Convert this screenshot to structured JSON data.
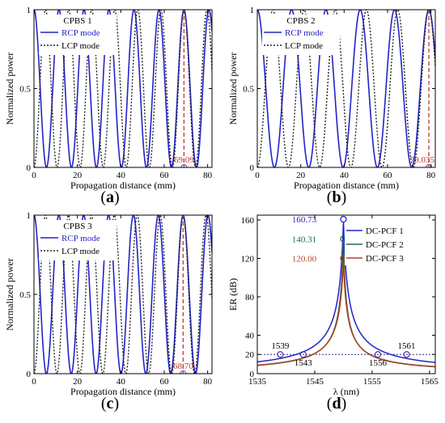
{
  "chart_data": [
    {
      "type": "line",
      "panel_label": "(a)",
      "inset_title": "CPBS 1",
      "xlabel": "Propagation distance (mm)",
      "ylabel": "Normalized power",
      "xlim": [
        0,
        82
      ],
      "ylim": [
        0,
        1
      ],
      "xticks": [
        0,
        20,
        40,
        60,
        80
      ],
      "yticks": [
        0,
        0.5,
        1
      ],
      "xtick_labels": [
        "0",
        "20",
        "40",
        "60",
        "80"
      ],
      "ytick_labels": [
        "0",
        "0.5",
        "1"
      ],
      "legend_placement": "top-left",
      "series": [
        {
          "name": "RCP mode",
          "style": "solid",
          "color": "#2323c8",
          "start": "max",
          "crossings": 12,
          "length": 69.09
        },
        {
          "name": "LCP mode",
          "style": "dotted",
          "color": "#222222",
          "start": "min",
          "crossings": 13,
          "length": 69.09
        }
      ],
      "marker": {
        "x": 69.09,
        "label": "69.09",
        "color": "#c0392b"
      }
    },
    {
      "type": "line",
      "panel_label": "(b)",
      "inset_title": "CPBS 2",
      "xlabel": "Propagation distance (mm)",
      "ylabel": "Normalized power",
      "xlim": [
        0,
        82
      ],
      "ylim": [
        0,
        1
      ],
      "xticks": [
        0,
        20,
        40,
        60,
        80
      ],
      "yticks": [
        0,
        0.5,
        1
      ],
      "xtick_labels": [
        "0",
        "20",
        "40",
        "60",
        "80"
      ],
      "ytick_labels": [
        "0",
        "0.5",
        "1"
      ],
      "legend_placement": "top-left",
      "series": [
        {
          "name": "RCP mode",
          "style": "solid",
          "color": "#2323c8",
          "start": "max",
          "crossings": 10,
          "length": 79.035
        },
        {
          "name": "LCP mode",
          "style": "dotted",
          "color": "#222222",
          "start": "min",
          "crossings": 11,
          "length": 79.035
        }
      ],
      "marker": {
        "x": 79.035,
        "label": "79.035",
        "color": "#c0392b"
      }
    },
    {
      "type": "line",
      "panel_label": "(c)",
      "inset_title": "CPBS 3",
      "xlabel": "Propagation distance (mm)",
      "ylabel": "Normalized power",
      "xlim": [
        0,
        82
      ],
      "ylim": [
        0,
        1
      ],
      "xticks": [
        0,
        20,
        40,
        60,
        80
      ],
      "yticks": [
        0,
        0.5,
        1
      ],
      "xtick_labels": [
        "0",
        "20",
        "40",
        "60",
        "80"
      ],
      "ytick_labels": [
        "0",
        "0.5",
        "1"
      ],
      "legend_placement": "top-left",
      "series": [
        {
          "name": "RCP mode",
          "style": "solid",
          "color": "#2323c8",
          "start": "max",
          "crossings": 12,
          "length": 68.7
        },
        {
          "name": "LCP mode",
          "style": "dotted",
          "color": "#222222",
          "start": "min",
          "crossings": 13,
          "length": 68.7
        }
      ],
      "marker": {
        "x": 68.7,
        "label": "68.70",
        "color": "#c0392b"
      }
    },
    {
      "type": "line",
      "panel_label": "(d)",
      "xlabel": "λ (nm)",
      "ylabel": "ER (dB)",
      "xlim": [
        1535,
        1566
      ],
      "ylim": [
        0,
        165
      ],
      "xticks": [
        1535,
        1545,
        1555,
        1565
      ],
      "yticks": [
        0,
        20,
        40,
        80,
        120,
        160
      ],
      "xtick_labels": [
        "1535",
        "1545",
        "1555",
        "1565"
      ],
      "ytick_labels": [
        "0",
        "20",
        "40",
        "80",
        "120",
        "160"
      ],
      "legend_placement": "top-right",
      "center_wavelength": 1550,
      "threshold": {
        "y": 20,
        "color": "#3a2a8a"
      },
      "series": [
        {
          "name": "DC-PCF 1",
          "color": "#2323c8",
          "peak": 160.73,
          "peak_label": "160.73",
          "bandwidth_edges": [
            1539,
            1561
          ]
        },
        {
          "name": "DC-PCF 2",
          "color": "#1f6e3a",
          "peak": 140.31,
          "peak_label": "140.31",
          "bandwidth_edges": [
            1543,
            1556
          ]
        },
        {
          "name": "DC-PCF 3",
          "color": "#b0432a",
          "peak": 120.0,
          "peak_label": "120.00",
          "bandwidth_edges": [
            1543,
            1556
          ]
        }
      ],
      "edge_labels": [
        {
          "x": 1539,
          "label": "1539"
        },
        {
          "x": 1543,
          "label": "1543"
        },
        {
          "x": 1556,
          "label": "1556"
        },
        {
          "x": 1561,
          "label": "1561"
        }
      ]
    }
  ]
}
